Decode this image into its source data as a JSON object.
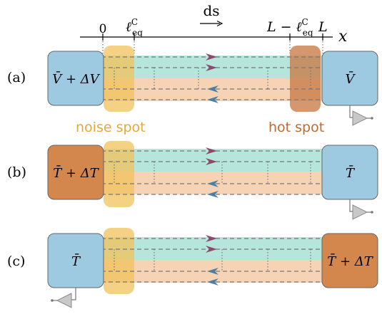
{
  "axis": {
    "tick_0": "0",
    "tick_leq_base": "ℓ",
    "tick_leq_sup": "C",
    "tick_leq_sub": "eq",
    "tick_L_minus": "L − ℓ",
    "tick_L_minus_sup": "C",
    "tick_L_minus_sub": "eq",
    "tick_L": "L",
    "axis_var": "x",
    "flow_label": "ds",
    "flow_arrow": "⟶"
  },
  "labels": {
    "noise_spot": "noise spot",
    "hot_spot": "hot spot"
  },
  "panels": [
    {
      "tag": "(a)",
      "left_label": "V̄ + ΔV",
      "right_label": "V̄"
    },
    {
      "tag": "(b)",
      "left_label": "T̄ + ΔT",
      "right_label": "T̄"
    },
    {
      "tag": "(c)",
      "left_label": "T̄",
      "right_label": "T̄ + ΔT"
    }
  ],
  "colors": {
    "blue_box": "#9ecae1",
    "orange_box": "#d4874c",
    "teal_band": "#b6e5dc",
    "peach_band": "#f7d3b6",
    "noise_spot": "#f1c15a",
    "hot_spot": "#c97d4a",
    "upper_arrow": "#8b4a6b",
    "lower_arrow": "#4a7ea3",
    "noise_label": "#e8a73a",
    "hot_label": "#c26a2e",
    "ground": "#bdbdbd"
  }
}
